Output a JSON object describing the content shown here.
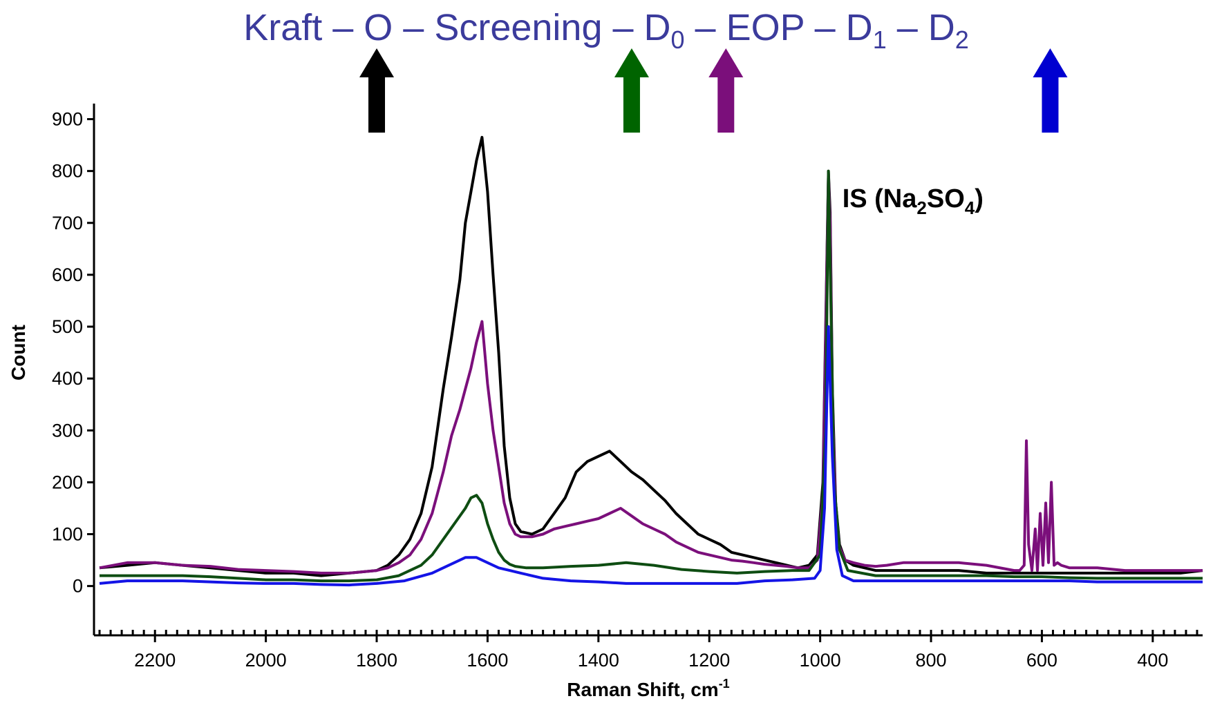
{
  "chart_data": {
    "type": "line",
    "title_parts": [
      {
        "t": "Kraft – O – Screening – D"
      },
      {
        "t": "0",
        "sub": true
      },
      {
        "t": " – EOP – D"
      },
      {
        "t": "1",
        "sub": true
      },
      {
        "t": " – D"
      },
      {
        "t": "2",
        "sub": true
      }
    ],
    "xlabel": "Raman Shift, cm",
    "xlabel_sup": "-1",
    "ylabel": "Count",
    "x_reversed": true,
    "xlim": [
      2310,
      310
    ],
    "ylim": [
      -95,
      930
    ],
    "x_ticks": [
      2200,
      2000,
      1800,
      1600,
      1400,
      1200,
      1000,
      800,
      600,
      400
    ],
    "y_ticks": [
      0,
      100,
      200,
      300,
      400,
      500,
      600,
      700,
      800,
      900
    ],
    "grid": false,
    "legend": "none",
    "annotation": {
      "parts": [
        {
          "t": "IS (Na"
        },
        {
          "t": "2",
          "sub": true
        },
        {
          "t": "SO"
        },
        {
          "t": "4",
          "sub": true
        },
        {
          "t": ")"
        }
      ],
      "x": 960,
      "y": 730
    },
    "arrows": [
      {
        "x": 1800,
        "color": "#000000"
      },
      {
        "x": 1340,
        "color": "#006400"
      },
      {
        "x": 1170,
        "color": "#7b0f7b"
      },
      {
        "x": 585,
        "color": "#0000d0"
      }
    ],
    "series": [
      {
        "color": "#000000",
        "x": [
          2300,
          2250,
          2200,
          2150,
          2100,
          2050,
          2000,
          1950,
          1900,
          1850,
          1800,
          1780,
          1760,
          1740,
          1720,
          1700,
          1680,
          1665,
          1650,
          1640,
          1630,
          1620,
          1610,
          1600,
          1590,
          1580,
          1570,
          1560,
          1550,
          1540,
          1520,
          1500,
          1480,
          1460,
          1440,
          1420,
          1400,
          1380,
          1360,
          1340,
          1320,
          1300,
          1280,
          1260,
          1240,
          1220,
          1200,
          1180,
          1160,
          1140,
          1120,
          1100,
          1080,
          1060,
          1040,
          1020,
          1005,
          995,
          990,
          985,
          982,
          978,
          972,
          965,
          955,
          940,
          920,
          900,
          880,
          850,
          800,
          750,
          700,
          650,
          600,
          550,
          500,
          450,
          400,
          350,
          310
        ],
        "y": [
          35,
          40,
          45,
          40,
          35,
          30,
          25,
          25,
          20,
          25,
          30,
          40,
          60,
          90,
          140,
          230,
          380,
          480,
          590,
          700,
          760,
          820,
          865,
          760,
          600,
          450,
          270,
          170,
          120,
          105,
          100,
          110,
          140,
          170,
          220,
          240,
          250,
          260,
          240,
          220,
          205,
          185,
          165,
          140,
          120,
          100,
          90,
          80,
          65,
          60,
          55,
          50,
          45,
          40,
          35,
          40,
          60,
          200,
          500,
          800,
          720,
          380,
          160,
          80,
          50,
          40,
          35,
          30,
          30,
          30,
          30,
          30,
          25,
          25,
          25,
          25,
          25,
          25,
          25,
          25,
          30
        ]
      },
      {
        "color": "#7b0f7b",
        "x": [
          2300,
          2250,
          2200,
          2150,
          2100,
          2050,
          2000,
          1950,
          1900,
          1850,
          1800,
          1780,
          1760,
          1740,
          1720,
          1700,
          1680,
          1665,
          1650,
          1640,
          1630,
          1620,
          1610,
          1600,
          1590,
          1580,
          1570,
          1560,
          1550,
          1540,
          1520,
          1500,
          1480,
          1460,
          1440,
          1420,
          1400,
          1380,
          1360,
          1340,
          1320,
          1300,
          1280,
          1260,
          1240,
          1220,
          1200,
          1180,
          1160,
          1140,
          1120,
          1100,
          1080,
          1060,
          1040,
          1020,
          1005,
          995,
          990,
          985,
          982,
          978,
          972,
          965,
          955,
          940,
          920,
          900,
          880,
          850,
          800,
          750,
          700,
          650,
          640,
          632,
          628,
          624,
          618,
          612,
          608,
          603,
          598,
          593,
          588,
          583,
          578,
          572,
          565,
          550,
          500,
          450,
          400,
          350,
          310
        ],
        "y": [
          35,
          45,
          45,
          40,
          38,
          32,
          30,
          28,
          25,
          25,
          30,
          35,
          45,
          60,
          90,
          140,
          220,
          290,
          340,
          380,
          420,
          470,
          510,
          390,
          300,
          230,
          160,
          120,
          100,
          95,
          95,
          100,
          110,
          115,
          120,
          125,
          130,
          140,
          150,
          135,
          120,
          110,
          100,
          85,
          75,
          65,
          60,
          55,
          50,
          48,
          45,
          42,
          40,
          38,
          35,
          35,
          50,
          180,
          480,
          795,
          700,
          360,
          150,
          75,
          50,
          45,
          40,
          38,
          40,
          45,
          45,
          45,
          40,
          30,
          30,
          40,
          280,
          80,
          30,
          110,
          30,
          140,
          40,
          160,
          45,
          200,
          40,
          45,
          40,
          35,
          35,
          30,
          30,
          30,
          30
        ]
      },
      {
        "color": "#0e4d12",
        "x": [
          2300,
          2250,
          2200,
          2150,
          2100,
          2050,
          2000,
          1950,
          1900,
          1850,
          1800,
          1760,
          1720,
          1700,
          1680,
          1660,
          1640,
          1630,
          1620,
          1610,
          1600,
          1590,
          1580,
          1570,
          1560,
          1550,
          1530,
          1500,
          1450,
          1400,
          1350,
          1300,
          1250,
          1200,
          1150,
          1100,
          1050,
          1020,
          1000,
          990,
          985,
          980,
          975,
          965,
          950,
          900,
          850,
          800,
          750,
          700,
          650,
          600,
          550,
          500,
          450,
          400,
          350,
          310
        ],
        "y": [
          20,
          20,
          20,
          20,
          18,
          15,
          12,
          12,
          10,
          10,
          12,
          20,
          40,
          60,
          90,
          120,
          150,
          170,
          175,
          160,
          120,
          90,
          65,
          50,
          42,
          38,
          35,
          35,
          38,
          40,
          45,
          40,
          32,
          28,
          25,
          28,
          30,
          30,
          60,
          300,
          800,
          500,
          200,
          70,
          30,
          20,
          20,
          20,
          20,
          20,
          18,
          18,
          16,
          15,
          15,
          15,
          15,
          15
        ]
      },
      {
        "color": "#1414e6",
        "x": [
          2300,
          2250,
          2200,
          2150,
          2100,
          2050,
          2000,
          1950,
          1900,
          1850,
          1800,
          1750,
          1700,
          1680,
          1660,
          1640,
          1620,
          1600,
          1580,
          1560,
          1540,
          1500,
          1450,
          1400,
          1350,
          1300,
          1250,
          1200,
          1150,
          1100,
          1050,
          1010,
          1000,
          992,
          985,
          978,
          970,
          960,
          940,
          900,
          850,
          800,
          750,
          700,
          650,
          600,
          550,
          500,
          450,
          400,
          350,
          310
        ],
        "y": [
          5,
          10,
          10,
          10,
          8,
          6,
          5,
          5,
          3,
          2,
          5,
          10,
          25,
          35,
          45,
          55,
          55,
          45,
          35,
          30,
          25,
          15,
          10,
          8,
          5,
          5,
          5,
          5,
          5,
          10,
          12,
          15,
          30,
          150,
          500,
          250,
          70,
          20,
          10,
          10,
          10,
          10,
          10,
          10,
          10,
          10,
          10,
          8,
          8,
          8,
          8,
          8
        ]
      }
    ]
  }
}
